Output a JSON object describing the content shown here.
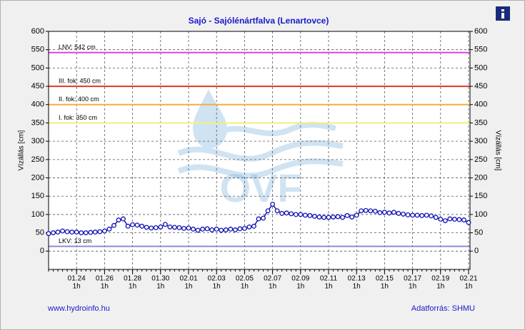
{
  "chart_data": {
    "type": "line",
    "title": "Sajó - Sajólénártfalva (Lenartovce)",
    "y_label": "Vízállás [cm]",
    "y2_label": "Vízállás [cm]",
    "watermark": "OVF",
    "footer_left": "www.hydroinfo.hu",
    "footer_right": "Adatforrás: SHMU",
    "x_hour_label": "1h",
    "categories": [
      null,
      null,
      null,
      null,
      null,
      null,
      "01.24",
      null,
      null,
      null,
      null,
      null,
      "01.26",
      null,
      null,
      null,
      null,
      null,
      "01.28",
      null,
      null,
      null,
      null,
      null,
      "01.30",
      null,
      null,
      null,
      null,
      null,
      "02.01",
      null,
      null,
      null,
      null,
      null,
      "02.03",
      null,
      null,
      null,
      null,
      null,
      "02.05",
      null,
      null,
      null,
      null,
      null,
      "02.07",
      null,
      null,
      null,
      null,
      null,
      "02.09",
      null,
      null,
      null,
      null,
      null,
      "02.11",
      null,
      null,
      null,
      null,
      null,
      "02.13",
      null,
      null,
      null,
      null,
      null,
      "02.15",
      null,
      null,
      null,
      null,
      null,
      "02.17",
      null,
      null,
      null,
      null,
      null,
      "02.19",
      null,
      null,
      null,
      null,
      null,
      "02.21"
    ],
    "series": [
      {
        "name": "Vízállás",
        "color": "#1414b4",
        "values": [
          48,
          50,
          52,
          55,
          53,
          52,
          52,
          50,
          50,
          51,
          52,
          53,
          55,
          60,
          70,
          85,
          88,
          68,
          72,
          71,
          68,
          65,
          63,
          64,
          66,
          73,
          66,
          65,
          64,
          62,
          63,
          60,
          57,
          60,
          61,
          58,
          60,
          57,
          58,
          60,
          58,
          61,
          62,
          66,
          68,
          88,
          90,
          110,
          128,
          110,
          103,
          104,
          102,
          100,
          100,
          98,
          97,
          95,
          93,
          92,
          92,
          93,
          94,
          92,
          97,
          93,
          98,
          110,
          111,
          110,
          109,
          105,
          106,
          104,
          106,
          103,
          101,
          99,
          98,
          98,
          97,
          98,
          96,
          92,
          87,
          83,
          88,
          87,
          86,
          85,
          78
        ]
      }
    ],
    "reference_lines": [
      {
        "label": "LNV: 542 cm",
        "value": 542,
        "color": "#e040e0"
      },
      {
        "label": "III. fok: 450 cm",
        "value": 450,
        "color": "#e03a1a"
      },
      {
        "label": "II. fok: 400 cm",
        "value": 400,
        "color": "#f0b040"
      },
      {
        "label": "I. fok: 350 cm",
        "value": 350,
        "color": "#f2f07a"
      },
      {
        "label": "LKV: 13 cm",
        "value": 13,
        "color": "#8a8ae0"
      }
    ],
    "ylim": [
      -50,
      600
    ],
    "yticks": [
      0,
      50,
      100,
      150,
      200,
      250,
      300,
      350,
      400,
      450,
      500,
      550,
      600
    ],
    "grid": true
  }
}
